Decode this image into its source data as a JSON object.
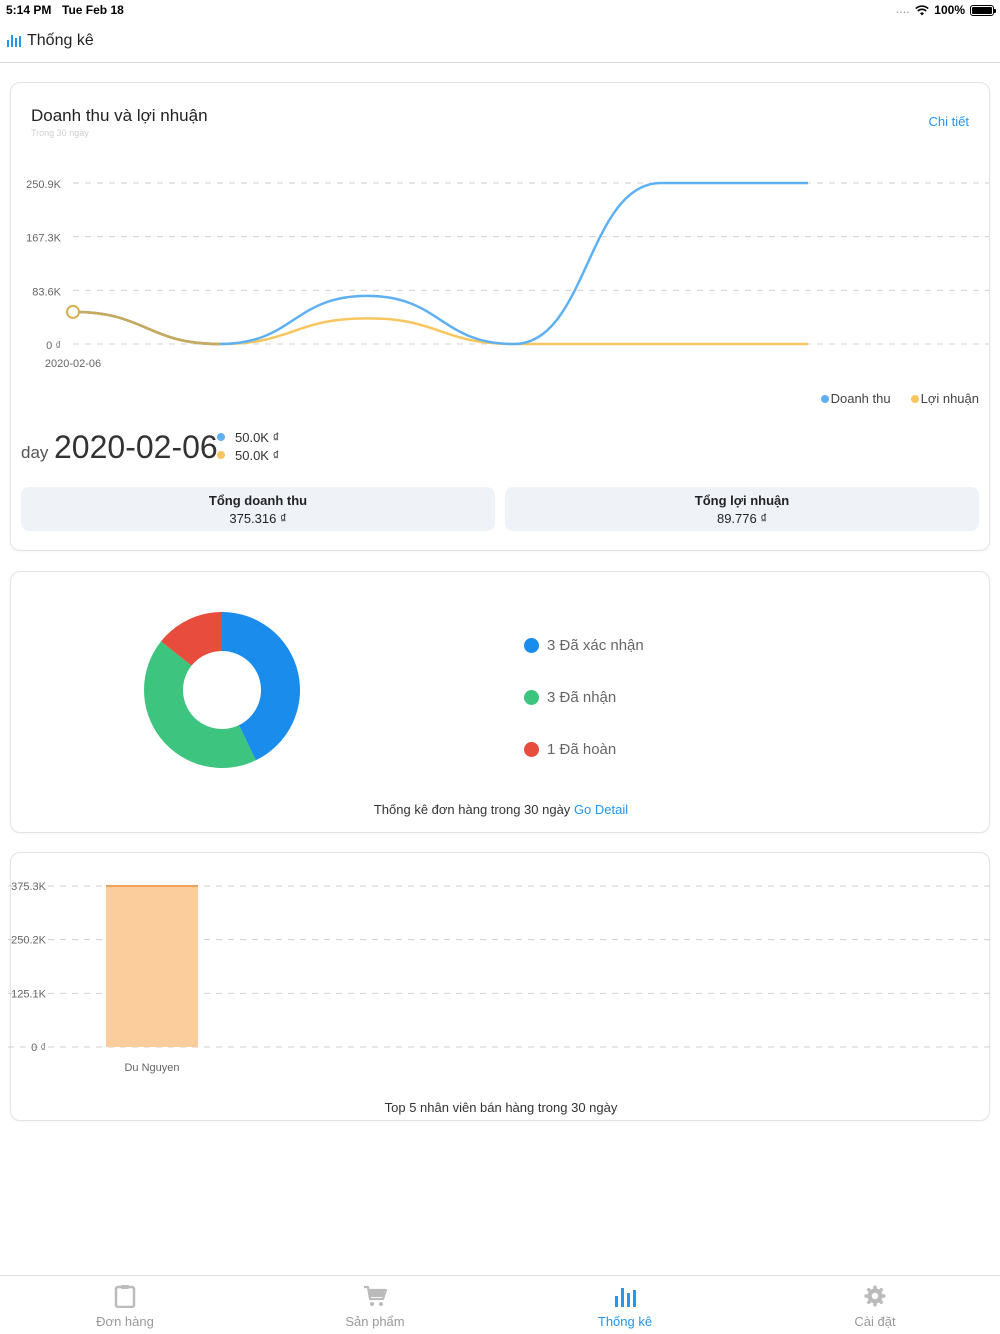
{
  "status_bar": {
    "time": "5:14 PM",
    "date": "Tue Feb 18",
    "signal": "....",
    "battery": "100%"
  },
  "header": {
    "title": "Thống kê",
    "icon": "bar-chart-icon"
  },
  "revenue_card": {
    "title": "Doanh thu và lợi nhuận",
    "subtitle": "Trong 30 ngày",
    "detail_link": "Chi tiết",
    "legend": [
      {
        "label": "Doanh thu",
        "color": "#5eb0f2"
      },
      {
        "label": "Lợi nhuận",
        "color": "#f8c660"
      }
    ],
    "selected": {
      "unit": "day",
      "date": "2020-02-06",
      "revenue": "50.0K ₫",
      "profit": "50.0K ₫"
    },
    "totals": {
      "revenue_label": "Tổng doanh thu",
      "revenue_value": "375.316 ₫",
      "profit_label": "Tổng lợi nhuận",
      "profit_value": "89.776 ₫"
    }
  },
  "orders_card": {
    "legend": [
      {
        "label": "3 Đã xác nhận",
        "color": "#1a8ceb"
      },
      {
        "label": "3 Đã nhận",
        "color": "#3dc47e"
      },
      {
        "label": "1 Đã hoàn",
        "color": "#e74c3c"
      }
    ],
    "footer_text": "Thống kê đơn hàng trong 30 ngày",
    "footer_link": "Go Detail"
  },
  "staff_card": {
    "footer_text": "Top 5 nhân viên bán hàng trong 30 ngày"
  },
  "tabs": [
    {
      "label": "Đơn hàng",
      "icon": "clipboard-icon"
    },
    {
      "label": "Sản phẩm",
      "icon": "cart-icon"
    },
    {
      "label": "Thống kê",
      "icon": "bar-chart-icon"
    },
    {
      "label": "Cài đặt",
      "icon": "gear-icon"
    }
  ],
  "colors": {
    "accent": "#2196f3",
    "revenue": "#5eb0f2",
    "profit": "#f8c660",
    "bar": "#fbcd9d"
  },
  "chart_data": [
    {
      "type": "line",
      "x": [
        "2020-02-06",
        "",
        "",
        "",
        "",
        ""
      ],
      "series": [
        {
          "name": "Doanh thu",
          "values": [
            50000,
            0,
            75000,
            0,
            250900,
            250900
          ]
        },
        {
          "name": "Lợi nhuận",
          "values": [
            50000,
            0,
            40000,
            0,
            0,
            0
          ]
        }
      ],
      "xticks": [
        "2020-02-06"
      ],
      "yticks": [
        "0 ₫",
        "83.6K",
        "167.3K",
        "250.9K"
      ],
      "ytick_values": [
        0,
        83600,
        167300,
        250900
      ],
      "ylim": [
        0,
        250900
      ],
      "grid": true,
      "legend": "bottom-right"
    },
    {
      "type": "pie",
      "donut": true,
      "categories": [
        "Đã xác nhận",
        "Đã nhận",
        "Đã hoàn"
      ],
      "values": [
        3,
        3,
        1
      ]
    },
    {
      "type": "bar",
      "categories": [
        "Du Nguyen"
      ],
      "values": [
        375316
      ],
      "yticks": [
        "0 ₫",
        "125.1K",
        "250.2K",
        "375.3K"
      ],
      "ytick_values": [
        0,
        125100,
        250200,
        375300
      ],
      "ylim": [
        0,
        375300
      ],
      "grid": true
    }
  ]
}
